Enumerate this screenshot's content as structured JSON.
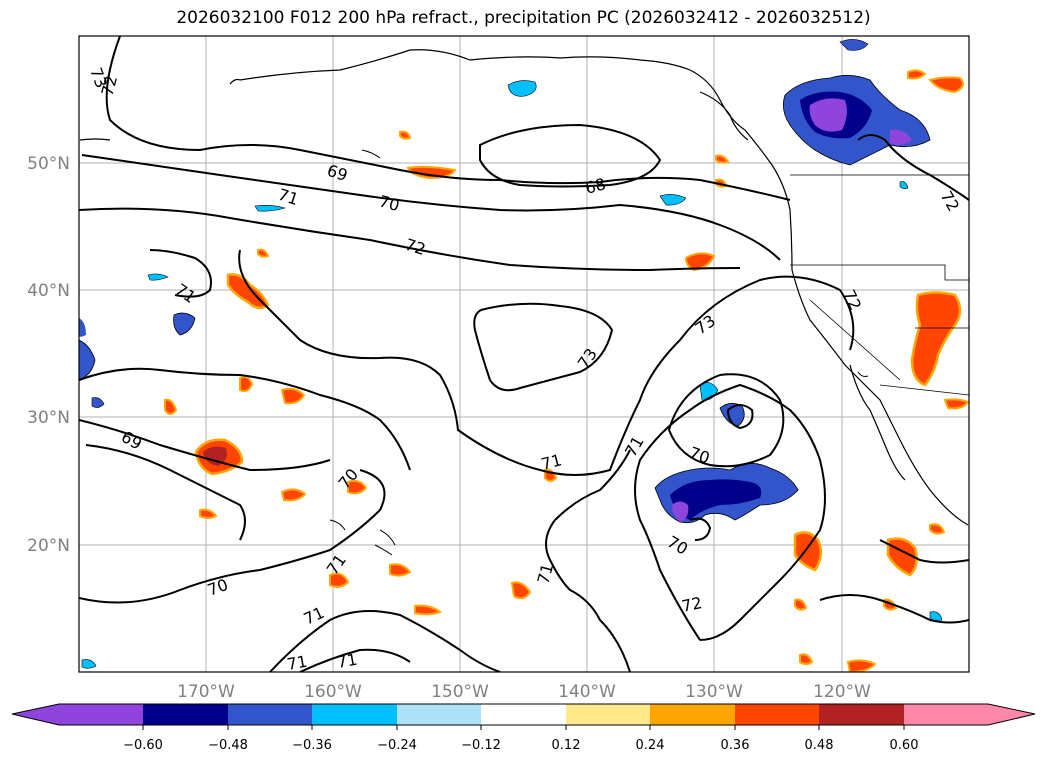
{
  "title": "2026032100 F012 200 hPa refract., precipitation PC (2026032412 - 2026032512)",
  "lat_labels": [
    "50°N",
    "40°N",
    "30°N",
    "20°N"
  ],
  "lon_labels": [
    "170°W",
    "160°W",
    "150°W",
    "140°W",
    "130°W",
    "120°W"
  ],
  "contour_labels": [
    "73",
    "72",
    "69",
    "70",
    "68",
    "71",
    "72",
    "71",
    "69",
    "70",
    "71",
    "71",
    "70",
    "71",
    "71",
    "71",
    "73",
    "73",
    "71",
    "70",
    "70",
    "71",
    "72",
    "72",
    "72"
  ],
  "colorbar": {
    "colors": [
      "#8e44dd",
      "#00008b",
      "#3355cc",
      "#00bfff",
      "#aee0f7",
      "#ffffff",
      "#ffe98a",
      "#ffa500",
      "#ff4500",
      "#b22222",
      "#ff88aa"
    ],
    "tick_labels": [
      "−0.60",
      "−0.48",
      "−0.36",
      "−0.24",
      "−0.12",
      "0.12",
      "0.24",
      "0.36",
      "0.48",
      "0.60"
    ]
  }
}
